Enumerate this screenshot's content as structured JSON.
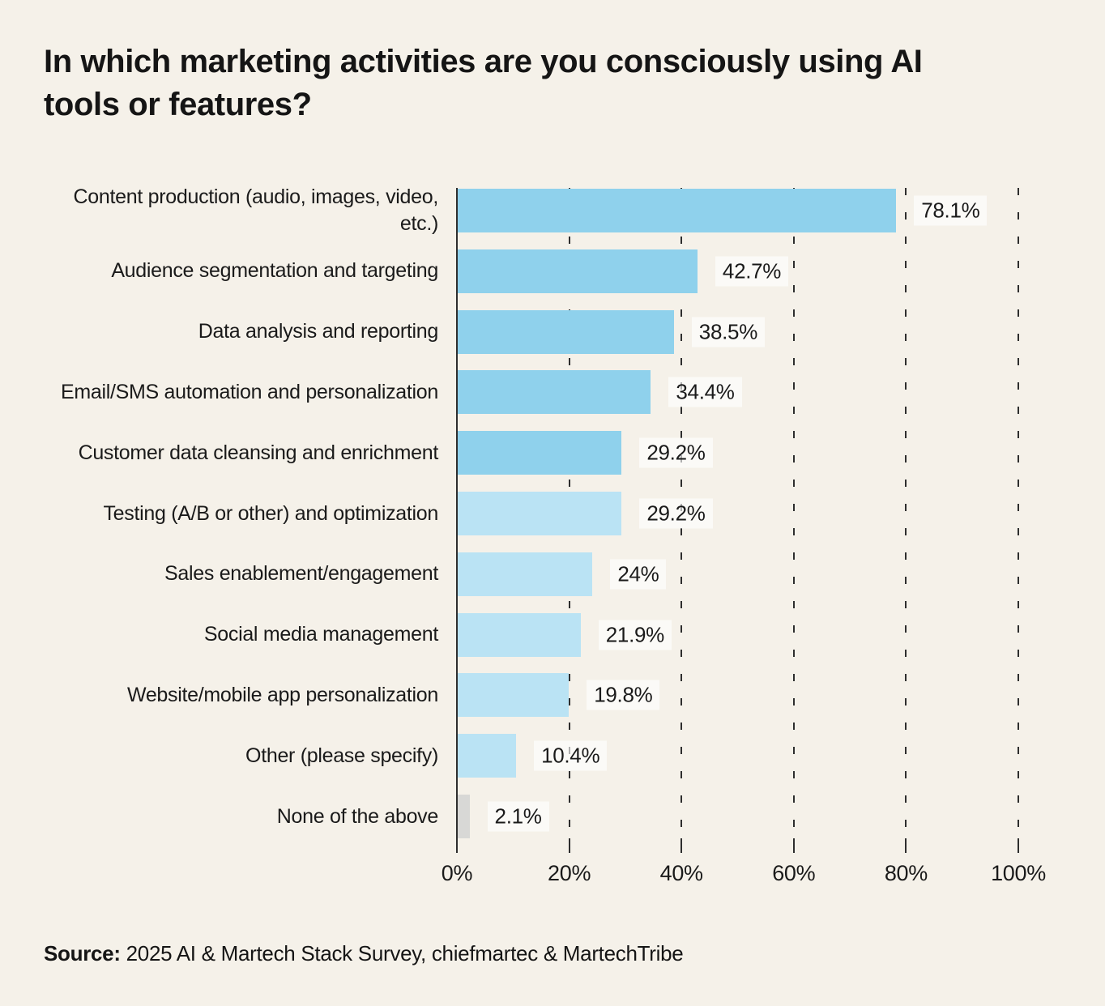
{
  "page": {
    "background_color": "#f5f1e9",
    "text_color": "#1a1a1a"
  },
  "title": "In which marketing activities are you consciously using AI tools or features?",
  "source": {
    "label": "Source:",
    "text": " 2025 AI & Martech Stack Survey, chiefmartec & MartechTribe"
  },
  "chart_data": {
    "type": "bar",
    "orientation": "horizontal",
    "title": "In which marketing activities are you consciously using AI tools or features?",
    "categories": [
      "Content production (audio, images, video, etc.)",
      "Audience segmentation and targeting",
      "Data analysis and reporting",
      "Email/SMS automation and personalization",
      "Customer data cleansing and enrichment",
      "Testing (A/B or other) and optimization",
      "Sales enablement/engagement",
      "Social media management",
      "Website/mobile app personalization",
      "Other (please specify)",
      "None of the above"
    ],
    "values": [
      78.1,
      42.7,
      38.5,
      34.4,
      29.2,
      29.2,
      24,
      21.9,
      19.8,
      10.4,
      2.1
    ],
    "value_labels": [
      "78.1%",
      "42.7%",
      "38.5%",
      "34.4%",
      "29.2%",
      "29.2%",
      "24%",
      "21.9%",
      "19.8%",
      "10.4%",
      "2.1%"
    ],
    "bar_colors": [
      "#8fd1ec",
      "#8fd1ec",
      "#8fd1ec",
      "#8fd1ec",
      "#8fd1ec",
      "#bae3f4",
      "#bae3f4",
      "#bae3f4",
      "#bae3f4",
      "#bae3f4",
      "#d8d8d6"
    ],
    "xlabel": "",
    "ylabel": "",
    "xlim": [
      0,
      100
    ],
    "x_tick_values": [
      0,
      20,
      40,
      60,
      80,
      100
    ],
    "x_tick_labels": [
      "0%",
      "20%",
      "40%",
      "60%",
      "80%",
      "100%"
    ],
    "grid": "vertical-dashed",
    "legend": "none"
  }
}
